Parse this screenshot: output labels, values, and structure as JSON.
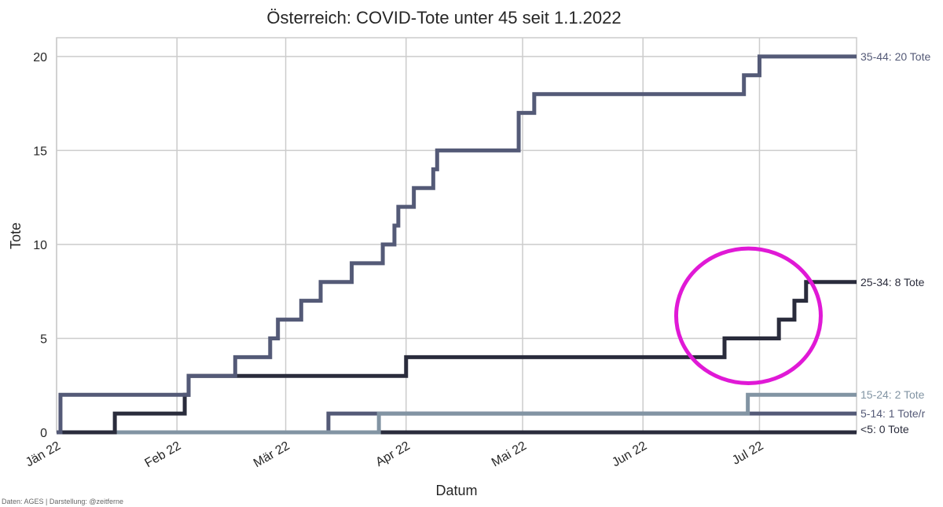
{
  "chart_data": {
    "type": "line",
    "title": "Österreich: COVID-Tote unter 45 seit 1.1.2022",
    "xlabel": "Datum",
    "ylabel": "Tote",
    "source": "Daten: AGES | Darstellung: @zeitferne",
    "x_range": [
      "2022-01-01",
      "2022-07-26"
    ],
    "ylim": [
      0,
      21
    ],
    "grid": true,
    "x_ticks": [
      {
        "date": "2022-01-01",
        "label": "Jän 22"
      },
      {
        "date": "2022-02-01",
        "label": "Feb 22"
      },
      {
        "date": "2022-03-01",
        "label": "Mär 22"
      },
      {
        "date": "2022-04-01",
        "label": "Apr 22"
      },
      {
        "date": "2022-05-01",
        "label": "Mai 22"
      },
      {
        "date": "2022-06-01",
        "label": "Jun 22"
      },
      {
        "date": "2022-07-01",
        "label": "Jul 22"
      }
    ],
    "y_ticks": [
      0,
      5,
      10,
      15,
      20
    ],
    "series": [
      {
        "label": "35-44: 20 Tote",
        "color": "#545a77",
        "steps": [
          [
            "2022-01-01",
            0
          ],
          [
            "2022-01-02",
            2
          ],
          [
            "2022-02-04",
            3
          ],
          [
            "2022-02-16",
            4
          ],
          [
            "2022-02-25",
            5
          ],
          [
            "2022-02-27",
            6
          ],
          [
            "2022-03-05",
            7
          ],
          [
            "2022-03-10",
            8
          ],
          [
            "2022-03-18",
            9
          ],
          [
            "2022-03-26",
            10
          ],
          [
            "2022-03-29",
            11
          ],
          [
            "2022-03-30",
            12
          ],
          [
            "2022-04-03",
            13
          ],
          [
            "2022-04-08",
            14
          ],
          [
            "2022-04-09",
            15
          ],
          [
            "2022-04-30",
            17
          ],
          [
            "2022-05-04",
            18
          ],
          [
            "2022-06-27",
            19
          ],
          [
            "2022-07-01",
            20
          ],
          [
            "2022-07-26",
            20
          ]
        ]
      },
      {
        "label": "25-34: 8 Tote",
        "color": "#2a2c3c",
        "steps": [
          [
            "2022-01-01",
            0
          ],
          [
            "2022-01-16",
            1
          ],
          [
            "2022-02-03",
            2
          ],
          [
            "2022-02-04",
            3
          ],
          [
            "2022-04-01",
            4
          ],
          [
            "2022-06-22",
            5
          ],
          [
            "2022-07-06",
            6
          ],
          [
            "2022-07-10",
            7
          ],
          [
            "2022-07-13",
            8
          ],
          [
            "2022-07-26",
            8
          ]
        ]
      },
      {
        "label": "15-24: 2 Tote",
        "color": "#8294a3",
        "steps": [
          [
            "2022-01-01",
            0
          ],
          [
            "2022-03-25",
            1
          ],
          [
            "2022-06-28",
            2
          ],
          [
            "2022-07-26",
            2
          ]
        ]
      },
      {
        "label": "5-14: 1 Tote/r",
        "color": "#545a77",
        "steps": [
          [
            "2022-01-01",
            0
          ],
          [
            "2022-03-12",
            1
          ],
          [
            "2022-07-26",
            1
          ]
        ]
      },
      {
        "label": "<5: 0 Tote",
        "color": "#2a2c3c",
        "steps": [
          [
            "2022-01-01",
            0
          ],
          [
            "2022-07-26",
            0
          ]
        ]
      }
    ],
    "annotations": [
      {
        "type": "ellipse",
        "color": "#e019d6",
        "center": [
          "2022-07-01",
          6.2
        ],
        "radius_days": 18,
        "radius_y": 3.5
      }
    ]
  }
}
